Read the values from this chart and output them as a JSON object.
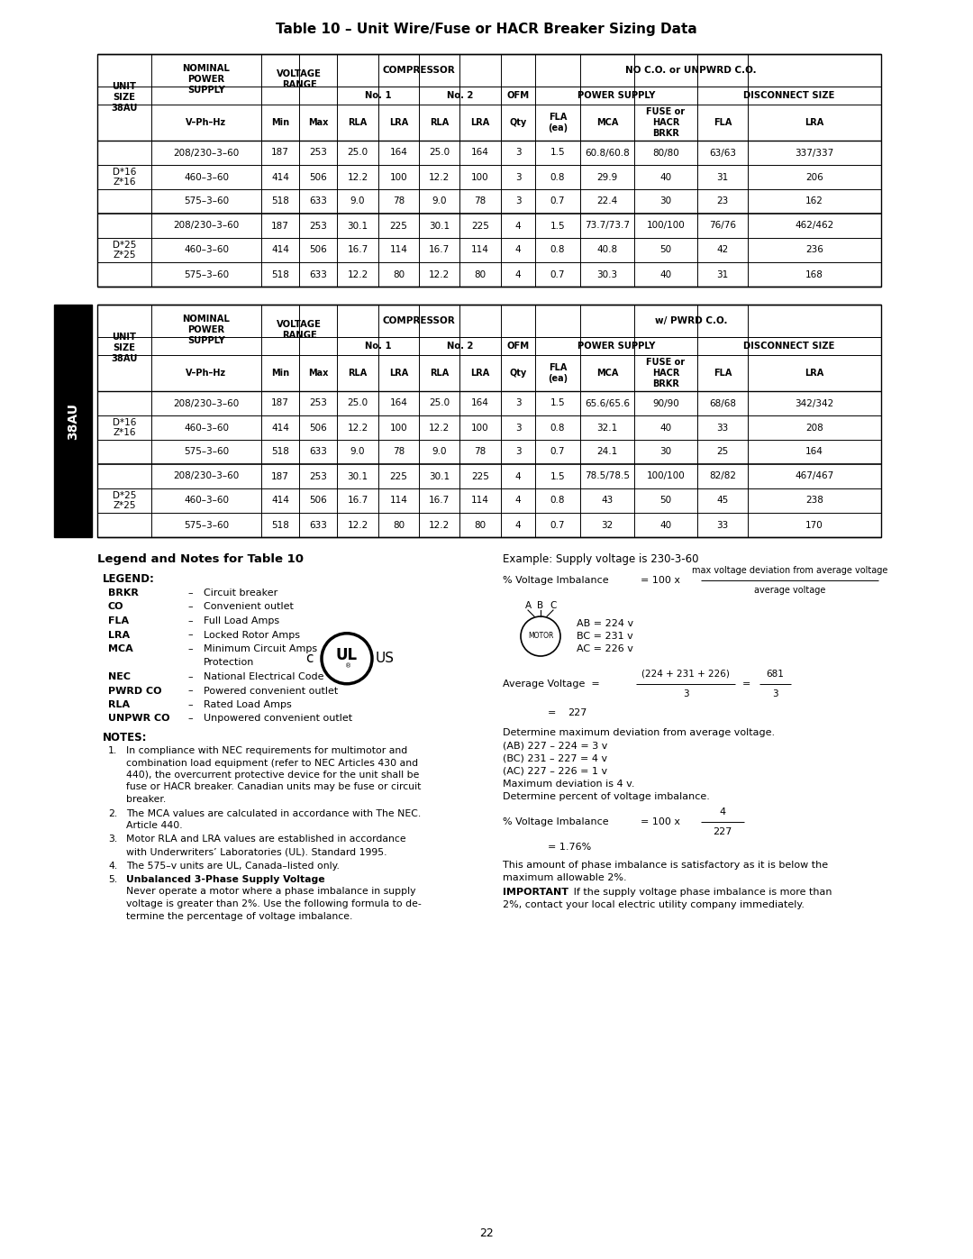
{
  "title": "Table 10 – Unit Wire/Fuse or HACR Breaker Sizing Data",
  "table1_data": [
    [
      "D*16\nZ*16",
      "208/230–3–60",
      "187",
      "253",
      "25.0",
      "164",
      "25.0",
      "164",
      "3",
      "1.5",
      "60.8/60.8",
      "80/80",
      "63/63",
      "337/337"
    ],
    [
      "",
      "460–3–60",
      "414",
      "506",
      "12.2",
      "100",
      "12.2",
      "100",
      "3",
      "0.8",
      "29.9",
      "40",
      "31",
      "206"
    ],
    [
      "",
      "575–3–60",
      "518",
      "633",
      "9.0",
      "78",
      "9.0",
      "78",
      "3",
      "0.7",
      "22.4",
      "30",
      "23",
      "162"
    ],
    [
      "D*25\nZ*25",
      "208/230–3–60",
      "187",
      "253",
      "30.1",
      "225",
      "30.1",
      "225",
      "4",
      "1.5",
      "73.7/73.7",
      "100/100",
      "76/76",
      "462/462"
    ],
    [
      "",
      "460–3–60",
      "414",
      "506",
      "16.7",
      "114",
      "16.7",
      "114",
      "4",
      "0.8",
      "40.8",
      "50",
      "42",
      "236"
    ],
    [
      "",
      "575–3–60",
      "518",
      "633",
      "12.2",
      "80",
      "12.2",
      "80",
      "4",
      "0.7",
      "30.3",
      "40",
      "31",
      "168"
    ]
  ],
  "table2_data": [
    [
      "D*16\nZ*16",
      "208/230–3–60",
      "187",
      "253",
      "25.0",
      "164",
      "25.0",
      "164",
      "3",
      "1.5",
      "65.6/65.6",
      "90/90",
      "68/68",
      "342/342"
    ],
    [
      "",
      "460–3–60",
      "414",
      "506",
      "12.2",
      "100",
      "12.2",
      "100",
      "3",
      "0.8",
      "32.1",
      "40",
      "33",
      "208"
    ],
    [
      "",
      "575–3–60",
      "518",
      "633",
      "9.0",
      "78",
      "9.0",
      "78",
      "3",
      "0.7",
      "24.1",
      "30",
      "25",
      "164"
    ],
    [
      "D*25\nZ*25",
      "208/230–3–60",
      "187",
      "253",
      "30.1",
      "225",
      "30.1",
      "225",
      "4",
      "1.5",
      "78.5/78.5",
      "100/100",
      "82/82",
      "467/467"
    ],
    [
      "",
      "460–3–60",
      "414",
      "506",
      "16.7",
      "114",
      "16.7",
      "114",
      "4",
      "0.8",
      "43",
      "50",
      "45",
      "238"
    ],
    [
      "",
      "575–3–60",
      "518",
      "633",
      "12.2",
      "80",
      "12.2",
      "80",
      "4",
      "0.7",
      "32",
      "40",
      "33",
      "170"
    ]
  ],
  "col_hdr": [
    "V–Ph–Hz",
    "Min",
    "Max",
    "RLA",
    "LRA",
    "RLA",
    "LRA",
    "Qty",
    "FLA\n(ea)",
    "MCA",
    "FUSE or\nHACR\nBRKR",
    "FLA",
    "LRA"
  ],
  "legend_items": [
    [
      "BRKR",
      "Circuit breaker"
    ],
    [
      "CO",
      "Convenient outlet"
    ],
    [
      "FLA",
      "Full Load Amps"
    ],
    [
      "LRA",
      "Locked Rotor Amps"
    ],
    [
      "MCA",
      "Minimum Circuit Amps\nProtection"
    ],
    [
      "NEC",
      "National Electrical Code"
    ],
    [
      "PWRD CO",
      "Powered convenient outlet"
    ],
    [
      "RLA",
      "Rated Load Amps"
    ],
    [
      "UNPWR CO",
      "Unpowered convenient outlet"
    ]
  ],
  "page_number": "22"
}
